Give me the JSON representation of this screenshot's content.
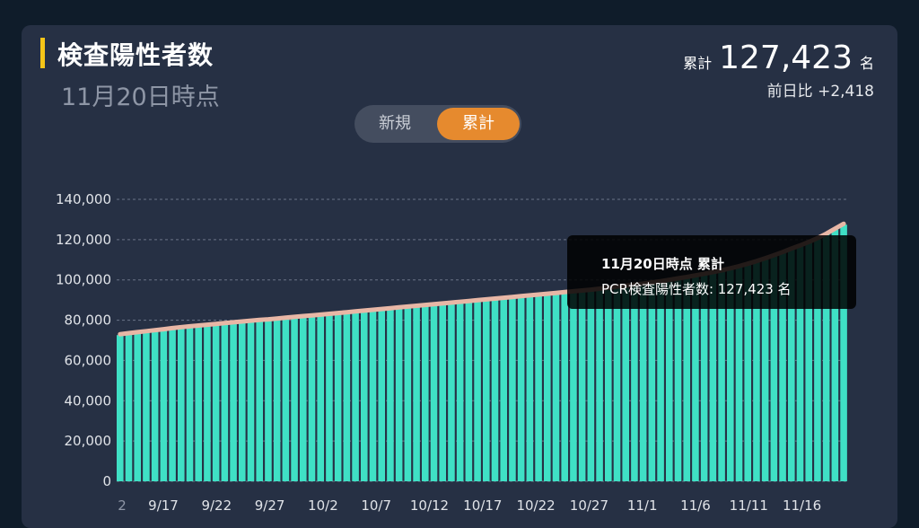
{
  "header": {
    "title": "検査陽性者数",
    "subtitle": "11月20日時点",
    "total_label": "累計",
    "total_value": "127,423",
    "total_unit": "名",
    "diff_text": "前日比 +2,418"
  },
  "toggle": {
    "new_label": "新規",
    "cumulative_label": "累計",
    "selected": "累計"
  },
  "tooltip": {
    "title": "11月20日時点 累計",
    "body": "PCR検査陽性者数: 127,423 名"
  },
  "colors": {
    "bar": "#3fe0c5",
    "line": "#e8b7a6",
    "accent": "#f5c518",
    "toggle_active": "#e68a2e"
  },
  "chart_data": {
    "type": "bar",
    "ylim": [
      0,
      140000
    ],
    "y_ticks": [
      "140,000",
      "120,000",
      "100,000",
      "80,000",
      "60,000",
      "40,000",
      "20,000",
      "0"
    ],
    "x_tick_labels": [
      "2",
      "9/17",
      "9/22",
      "9/27",
      "10/2",
      "10/7",
      "10/12",
      "10/17",
      "10/22",
      "10/27",
      "11/1",
      "11/6",
      "11/11",
      "11/16"
    ],
    "grid": true,
    "series": [
      {
        "values": [
          72600,
          73100,
          73600,
          74100,
          74600,
          75100,
          75600,
          76100,
          76500,
          76900,
          77300,
          77700,
          78100,
          78500,
          78900,
          79300,
          79700,
          80000,
          80400,
          80800,
          81200,
          81600,
          81900,
          82300,
          82700,
          83100,
          83500,
          83900,
          84300,
          84700,
          85100,
          85500,
          85900,
          86300,
          86700,
          87100,
          87500,
          87900,
          88300,
          88700,
          89100,
          89500,
          89900,
          90300,
          90700,
          91100,
          91500,
          91900,
          92300,
          92700,
          93100,
          93500,
          93900,
          94300,
          94700,
          95200,
          95700,
          96200,
          96700,
          97200,
          97700,
          98300,
          98900,
          99600,
          100300,
          101000,
          101800,
          102600,
          103400,
          104300,
          105300,
          106400,
          107600,
          108900,
          110300,
          111800,
          113400,
          115100,
          116700,
          118400,
          120300,
          122500,
          125000,
          127423
        ]
      }
    ]
  }
}
